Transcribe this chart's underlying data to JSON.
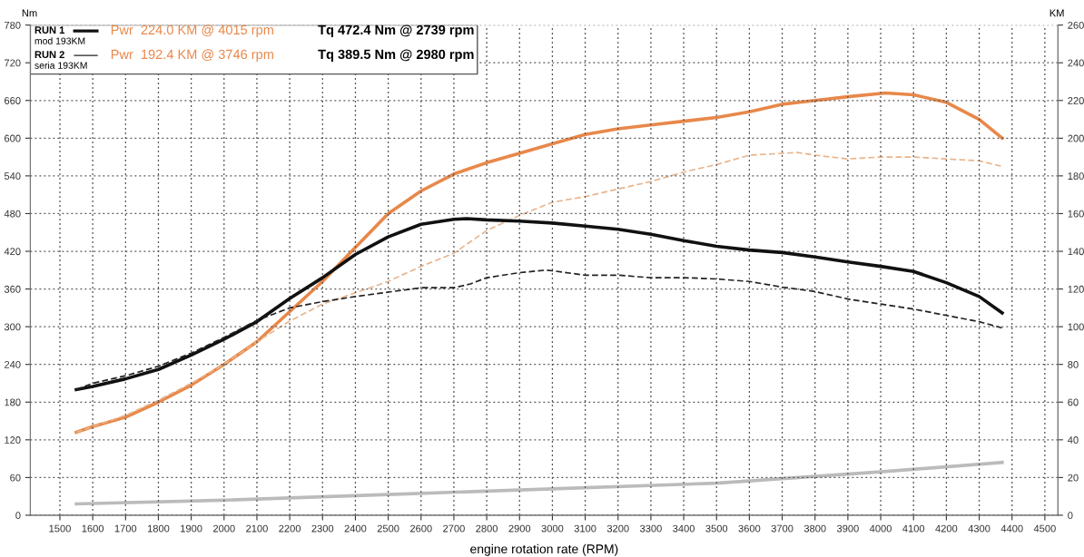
{
  "chart_data": {
    "type": "line",
    "xlabel": "engine rotation rate (RPM)",
    "ylabel": "Nm",
    "y2label": "KM",
    "xlim": [
      1410,
      4540
    ],
    "xticks": [
      1500,
      1600,
      1700,
      1800,
      1900,
      2000,
      2100,
      2200,
      2300,
      2400,
      2500,
      2600,
      2700,
      2800,
      2900,
      3000,
      3100,
      3200,
      3300,
      3400,
      3500,
      3600,
      3700,
      3800,
      3900,
      4000,
      4100,
      4200,
      4300,
      4400,
      4500
    ],
    "ylim": [
      0,
      780
    ],
    "yticks": [
      0,
      60,
      120,
      180,
      240,
      300,
      360,
      420,
      480,
      540,
      600,
      660,
      720,
      780
    ],
    "y2lim": [
      0,
      260
    ],
    "y2ticks": [
      0,
      20,
      40,
      60,
      80,
      100,
      120,
      140,
      160,
      180,
      200,
      220,
      240,
      260
    ],
    "grid": true,
    "legend": false,
    "series": [
      {
        "color": "#111111",
        "line_style": "solid",
        "x": [
          1550,
          1600,
          1700,
          1800,
          1900,
          2000,
          2100,
          2200,
          2300,
          2400,
          2500,
          2600,
          2700,
          2739,
          2800,
          2900,
          3000,
          3100,
          3200,
          3300,
          3400,
          3500,
          3600,
          3700,
          3800,
          3900,
          4000,
          4100,
          4200,
          4300,
          4370
        ],
        "values": [
          200,
          205,
          217,
          232,
          255,
          280,
          308,
          345,
          378,
          415,
          443,
          463,
          471,
          472,
          470,
          468,
          465,
          460,
          455,
          447,
          437,
          428,
          422,
          418,
          411,
          403,
          396,
          388,
          370,
          348,
          322
        ]
      },
      {
        "color": "#222222",
        "line_style": "dashed",
        "x": [
          1550,
          1600,
          1700,
          1800,
          1900,
          2000,
          2100,
          2200,
          2300,
          2400,
          2500,
          2600,
          2700,
          2750,
          2800,
          2900,
          2980,
          3000,
          3100,
          3200,
          3300,
          3400,
          3500,
          3600,
          3700,
          3800,
          3900,
          4000,
          4100,
          4200,
          4300,
          4370
        ],
        "values": [
          200,
          210,
          222,
          237,
          258,
          283,
          310,
          330,
          340,
          348,
          355,
          362,
          362,
          368,
          378,
          386,
          390,
          389,
          382,
          382,
          378,
          378,
          376,
          372,
          363,
          356,
          344,
          336,
          328,
          318,
          308,
          298
        ]
      },
      {
        "color": "#e8884a",
        "line_style": "solid",
        "axis": "y2",
        "x": [
          1550,
          1600,
          1700,
          1800,
          1900,
          2000,
          2100,
          2200,
          2300,
          2400,
          2500,
          2600,
          2700,
          2800,
          2900,
          3000,
          3100,
          3200,
          3300,
          3400,
          3500,
          3600,
          3700,
          3800,
          3900,
          4015,
          4100,
          4200,
          4300,
          4370
        ],
        "values": [
          44,
          47,
          52,
          60,
          69,
          80,
          92,
          108,
          124,
          142,
          160,
          172,
          181,
          187,
          192,
          197,
          202,
          205,
          207,
          209,
          211,
          214,
          218,
          220,
          222,
          224,
          223,
          219,
          210,
          200
        ]
      },
      {
        "color": "#e8b48c",
        "line_style": "dashed",
        "axis": "y2",
        "x": [
          1550,
          1600,
          1700,
          1800,
          1900,
          2000,
          2100,
          2200,
          2300,
          2400,
          2500,
          2600,
          2700,
          2800,
          2900,
          3000,
          3100,
          3200,
          3300,
          3400,
          3500,
          3600,
          3746,
          3800,
          3900,
          4000,
          4100,
          4200,
          4300,
          4370
        ],
        "values": [
          44,
          47,
          53,
          61,
          70,
          80,
          92,
          103,
          112,
          118,
          124,
          132,
          139,
          151,
          159,
          166,
          169,
          173,
          177,
          182,
          186,
          191,
          192.4,
          191,
          189,
          190,
          190,
          189,
          188,
          185
        ]
      },
      {
        "color": "#bbbbbb",
        "line_style": "solid",
        "axis": "y2",
        "x": [
          1550,
          2000,
          2500,
          3000,
          3500,
          4000,
          4370
        ],
        "values": [
          6,
          8,
          11,
          14,
          17,
          23,
          28
        ]
      }
    ],
    "annotations": [
      "RUN 1",
      "Pwr  224.0 KM @ 4015 rpm",
      "Tq 472.4 Nm @ 2739 rpm",
      "mod 193KM",
      "RUN 2",
      "Pwr  192.4 KM @ 3746 rpm",
      "Tq 389.5 Nm @ 2980 rpm",
      "seria 193KM"
    ]
  }
}
